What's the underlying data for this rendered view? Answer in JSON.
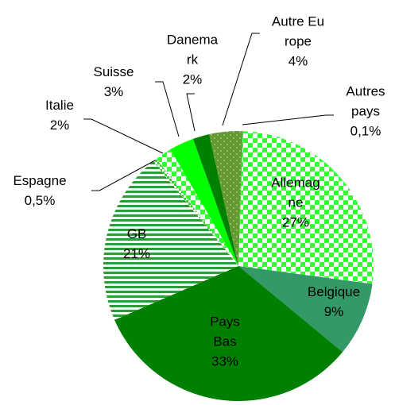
{
  "chart_data": {
    "type": "pie",
    "categories": [
      "Allemagne",
      "Belgique",
      "Pays Bas",
      "GB",
      "Espagne",
      "Italie",
      "Suisse",
      "Danemark",
      "Autre Europe",
      "Autres pays"
    ],
    "values": [
      27,
      9,
      33,
      21,
      0.5,
      2,
      3,
      2,
      4,
      0.1
    ],
    "value_labels": [
      "27%",
      "9%",
      "33%",
      "21%",
      "0,5%",
      "2%",
      "3%",
      "2%",
      "4%",
      "0,1%"
    ],
    "colors": [
      "#33ff33",
      "#339966",
      "#008000",
      "#339933",
      "#33cc33",
      "#33ff33",
      "#00ff00",
      "#008000",
      "#669933",
      "#33cc33"
    ],
    "patterns": [
      "checker",
      "solid",
      "solid",
      "stripes",
      "checker",
      "checker",
      "solid",
      "solid",
      "dots",
      "solid"
    ]
  }
}
